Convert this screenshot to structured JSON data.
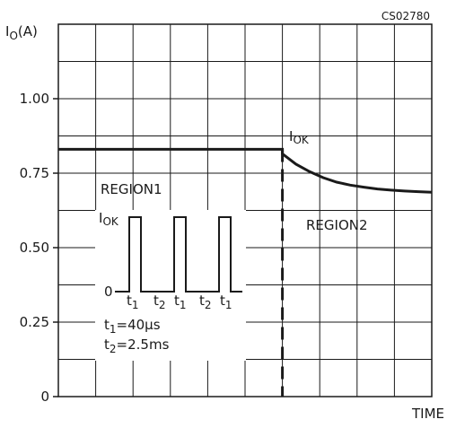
{
  "chart_data": {
    "type": "line",
    "title": "",
    "code": "CS02780",
    "ylabel": "Io(A)",
    "ylabel_main": "I",
    "ylabel_sub": "O",
    "ylabel_unit": "(A)",
    "xlabel": "TIME",
    "ylim": [
      0,
      1.25
    ],
    "yticks": [
      0,
      0.25,
      0.5,
      0.75,
      1.0
    ],
    "ytick_labels": [
      "0",
      "0.25",
      "0.50",
      "0.75",
      "1.00"
    ],
    "grid": true,
    "x": [
      0,
      4.3,
      4.5,
      5.0,
      5.5,
      6.0,
      6.5,
      7.0,
      7.5,
      8.0,
      8.5,
      9.0,
      9.5,
      10.0
    ],
    "series": [
      {
        "values": [
          0.83,
          0.83,
          0.815,
          0.78,
          0.755,
          0.735,
          0.72,
          0.71,
          0.703,
          0.697,
          0.693,
          0.69,
          0.688,
          0.686
        ]
      }
    ],
    "xlim": [
      0,
      10
    ],
    "divider_x": 6.0,
    "annotations": {
      "iok_main": "I",
      "iok_sub": "OK",
      "region1": "REGION1",
      "region2": "REGION2"
    },
    "inset": {
      "ylabel_main": "I",
      "ylabel_sub": "OK",
      "zero": "0",
      "t1": "t",
      "t1_sub": "1",
      "t2": "t",
      "t2_sub": "2",
      "t_labels": [
        "t1",
        "t2",
        "t1",
        "t2",
        "t1"
      ],
      "note1_main": "t",
      "note1_sub": "1",
      "note1_value": "=40μs",
      "note2_main": "t",
      "note2_sub": "2",
      "note2_value": "=2.5ms"
    }
  }
}
